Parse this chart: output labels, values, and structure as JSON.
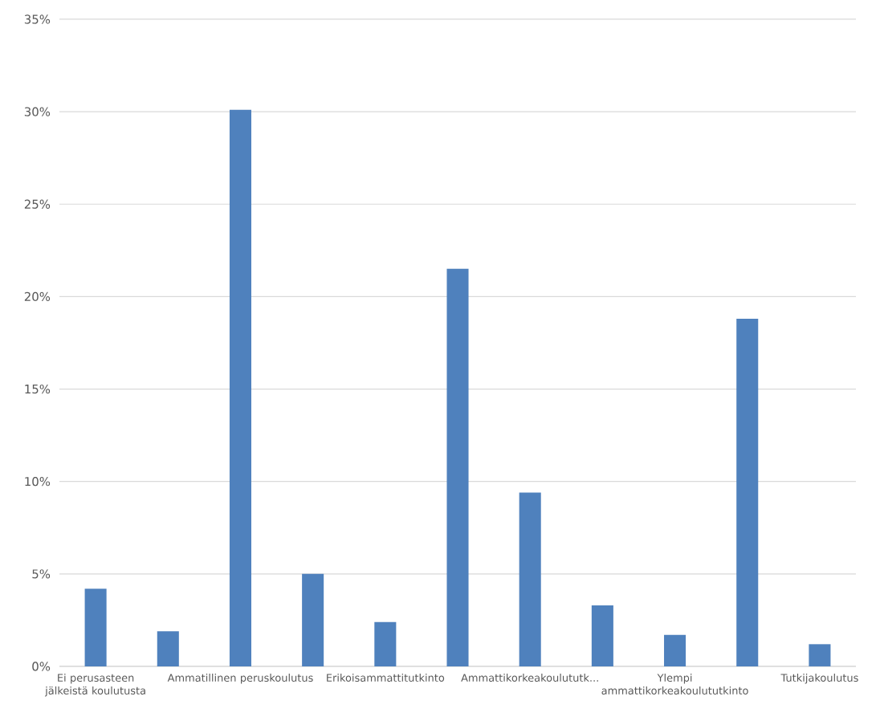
{
  "chart_data": {
    "type": "bar",
    "categories": [
      "Ei perusasteen jälkeistä koulutusta",
      null,
      "Ammatillinen peruskoulutus",
      null,
      "Erikoisammattitutkinto",
      null,
      "Ammattikorkeakoulututk...",
      null,
      "Ylempi ammattikorkeakoulututkinto",
      null,
      "Tutkijakoulutus"
    ],
    "values": [
      4.2,
      1.9,
      30.1,
      5.0,
      2.4,
      21.5,
      9.4,
      3.3,
      1.7,
      18.8,
      1.2
    ],
    "color": "#4f81bd",
    "ylim": [
      0,
      35
    ],
    "yticks": [
      {
        "value": 0,
        "label": "0%"
      },
      {
        "value": 5,
        "label": "5%"
      },
      {
        "value": 10,
        "label": "10%"
      },
      {
        "value": 15,
        "label": "15%"
      },
      {
        "value": 20,
        "label": "20%"
      },
      {
        "value": 25,
        "label": "25%"
      },
      {
        "value": 30,
        "label": "30%"
      },
      {
        "value": 35,
        "label": "35%"
      }
    ],
    "grid": "y"
  }
}
